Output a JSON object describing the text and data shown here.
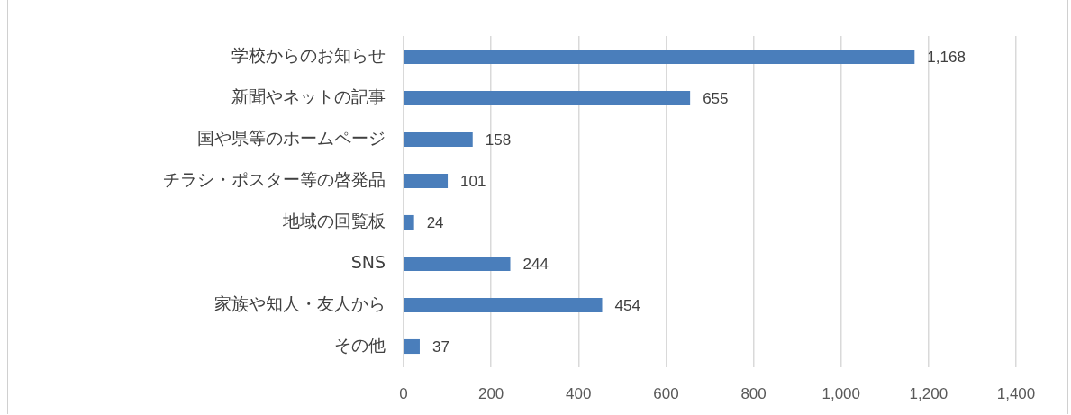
{
  "chart_data": {
    "type": "bar",
    "orientation": "horizontal",
    "categories": [
      "学校からのお知らせ",
      "新聞やネットの記事",
      "国や県等のホームページ",
      "チラシ・ポスター等の啓発品",
      "地域の回覧板",
      "SNS",
      "家族や知人・友人から",
      "その他"
    ],
    "values": [
      1168,
      655,
      158,
      101,
      24,
      244,
      454,
      37
    ],
    "value_labels": [
      "1,168",
      "655",
      "158",
      "101",
      "24",
      "244",
      "454",
      "37"
    ],
    "color": "#4a7ebb",
    "xlim": [
      0,
      1400
    ],
    "xticks": [
      0,
      200,
      400,
      600,
      800,
      {
        "value": 1000,
        "label": "1,000"
      },
      {
        "value": 1200,
        "label": "1,200"
      },
      {
        "value": 1400,
        "label": "1,400"
      }
    ],
    "grid": "x"
  }
}
